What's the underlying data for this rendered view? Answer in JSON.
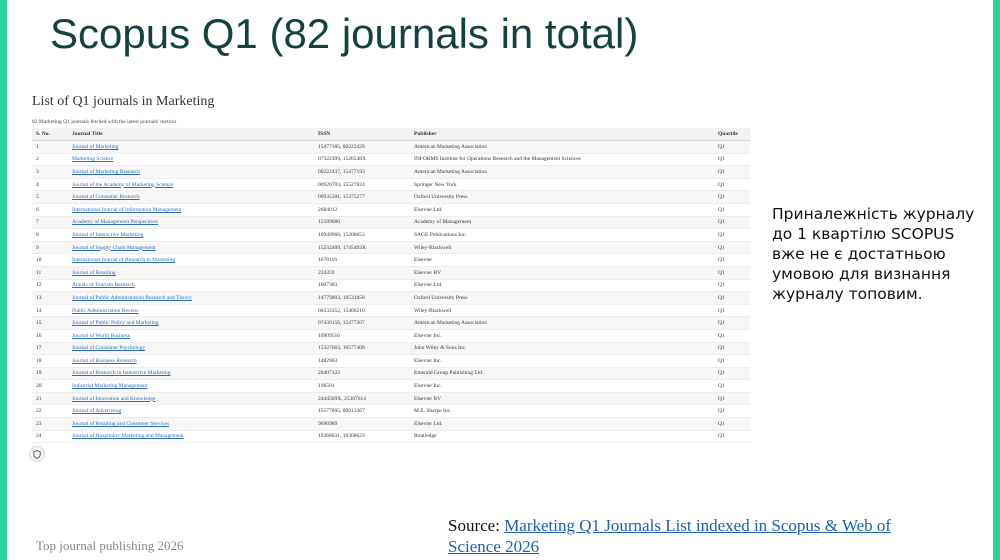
{
  "slide": {
    "title": "Scopus Q1 (82 journals in total)",
    "note": "Приналежність журналу до 1 квартілю SCOPUS вже не є достатньою умовою для визнання журналу топовим.",
    "footer_left": "Top journal publishing 2026",
    "source_label": "Source:",
    "source_link": "Marketing Q1 Journals List indexed in Scopus & Web of Science 2026",
    "accent_color": "#2bd39a",
    "title_color": "#14433f"
  },
  "panel": {
    "heading": "List of Q1 journals in Marketing",
    "subheading": "82 Marketing Q1 journals fetched with the latest journals' metrics",
    "columns": [
      "S. No.",
      "Journal Title",
      "ISSN",
      "Publisher",
      "Quartile"
    ],
    "rows": [
      [
        "1",
        "Journal of Marketing",
        "15477185, 00222429",
        "American Marketing Association",
        "Q1"
      ],
      [
        "2",
        "Marketing Science",
        "07322399, 1526548X",
        "INFORMS Institute for Operations Research and the Management Sciences",
        "Q1"
      ],
      [
        "3",
        "Journal of Marketing Research",
        "00222437, 15477193",
        "American Marketing Association",
        "Q1"
      ],
      [
        "4",
        "Journal of the Academy of Marketing Science",
        "00920703, 15527824",
        "Springer New York",
        "Q1"
      ],
      [
        "5",
        "Journal of Consumer Research",
        "00935301, 15375277",
        "Oxford University Press",
        "Q1"
      ],
      [
        "6",
        "International Journal of Information Management",
        "2684012",
        "Elsevier Ltd.",
        "Q1"
      ],
      [
        "7",
        "Academy of Management Perspectives",
        "15589080",
        "Academy of Management",
        "Q1"
      ],
      [
        "8",
        "Journal of Interactive Marketing",
        "10949968, 15206653",
        "SAGE Publications Inc.",
        "Q1"
      ],
      [
        "9",
        "Journal of Supply Chain Management",
        "15232409, 1745493X",
        "Wiley-Blackwell",
        "Q1"
      ],
      [
        "10",
        "International Journal of Research in Marketing",
        "1678116",
        "Elsevier",
        "Q1"
      ],
      [
        "11",
        "Journal of Retailing",
        "224359",
        "Elsevier BV",
        "Q1"
      ],
      [
        "12",
        "Annals of Tourism Research",
        "1607383",
        "Elsevier Ltd.",
        "Q1"
      ],
      [
        "13",
        "Journal of Public Administration Research and Theory",
        "14779803, 10531858",
        "Oxford University Press",
        "Q1"
      ],
      [
        "14",
        "Public Administration Review",
        "00333352, 15406210",
        "Wiley-Blackwell",
        "Q1"
      ],
      [
        "15",
        "Journal of Public Policy and Marketing",
        "07439156, 15477207",
        "American Marketing Association",
        "Q1"
      ],
      [
        "16",
        "Journal of World Business",
        "10909516",
        "Elsevier Inc.",
        "Q1"
      ],
      [
        "17",
        "Journal of Consumer Psychology",
        "15327663, 10577408",
        "John Wiley & Sons Inc.",
        "Q1"
      ],
      [
        "18",
        "Journal of Business Research",
        "1482963",
        "Elsevier Inc.",
        "Q1"
      ],
      [
        "19",
        "Journal of Research in Interactive Marketing",
        "20407122",
        "Emerald Group Publishing Ltd.",
        "Q1"
      ],
      [
        "20",
        "Industrial Marketing Management",
        "198501",
        "Elsevier Inc.",
        "Q1"
      ],
      [
        "21",
        "Journal of Innovation and Knowledge",
        "2444569X, 25307614",
        "Elsevier BV",
        "Q1"
      ],
      [
        "22",
        "Journal of Advertising",
        "15577805, 00913367",
        "M.E. Sharpe Inc.",
        "Q1"
      ],
      [
        "23",
        "Journal of Retailing and Consumer Services",
        "9696989",
        "Elsevier Ltd.",
        "Q1"
      ],
      [
        "24",
        "Journal of Hospitality Marketing and Management",
        "19368631, 19368623",
        "Routledge",
        "Q1"
      ]
    ]
  }
}
